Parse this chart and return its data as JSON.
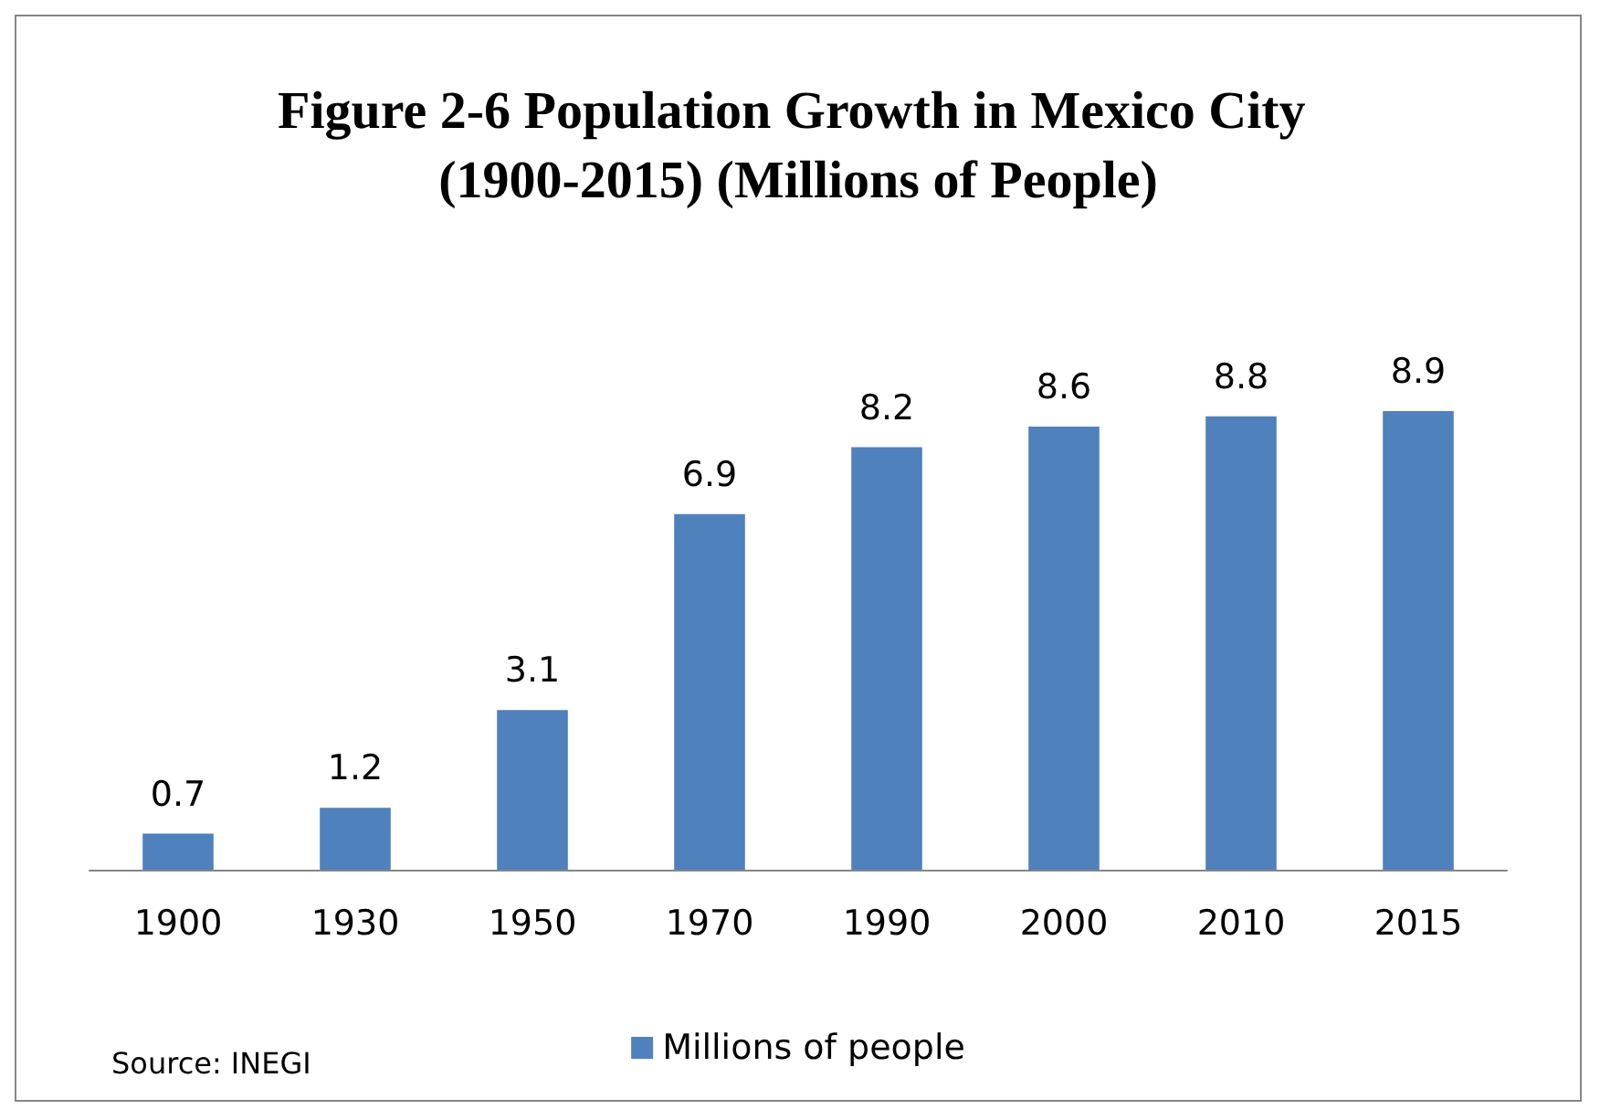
{
  "chart_data": {
    "type": "bar",
    "title": "Figure 2-6 Population Growth in Mexico City (1900-2015) (Millions of People)",
    "categories": [
      "1900",
      "1930",
      "1950",
      "1970",
      "1990",
      "2000",
      "2010",
      "2015"
    ],
    "series": [
      {
        "name": "Millions of people",
        "color": "#4f81bd",
        "values": [
          0.7,
          1.2,
          3.1,
          6.9,
          8.2,
          8.6,
          8.8,
          8.9
        ]
      }
    ],
    "data_labels": true,
    "legend": "bottom",
    "tick_labels": "x",
    "annotations": [
      "Source: INEGI"
    ]
  }
}
